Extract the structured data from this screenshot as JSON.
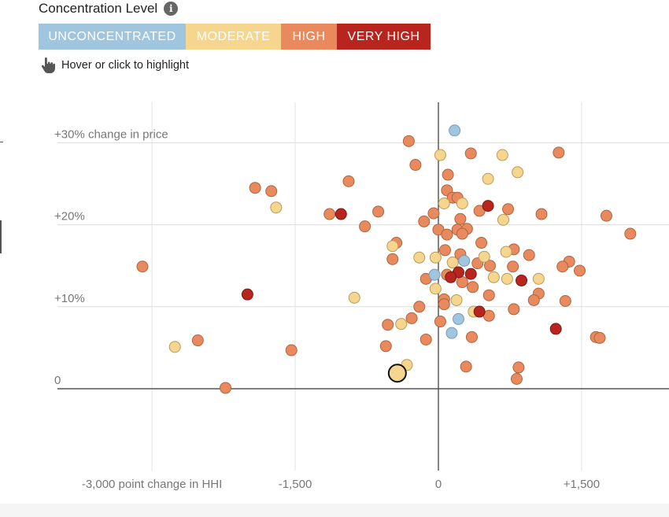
{
  "legend": {
    "title": "Concentration Level",
    "info_icon": "info-icon",
    "items": [
      {
        "label": "UNCONCENTRATED",
        "color": "#9fc5df",
        "text_color": "#ffffff",
        "key": "unconcentrated"
      },
      {
        "label": "MODERATE",
        "color": "#f6d68f",
        "text_color": "#ffffff",
        "key": "moderate"
      },
      {
        "label": "HIGH",
        "color": "#e88a5e",
        "text_color": "#ffffff",
        "key": "high"
      },
      {
        "label": "VERY HIGH",
        "color": "#b8251e",
        "text_color": "#ffffff",
        "key": "very_high"
      }
    ]
  },
  "hint": {
    "text": "Hover or click to highlight",
    "icon": "pointer-hand-icon"
  },
  "chart_data": {
    "type": "scatter",
    "x_tick_labels": [
      {
        "value": -3000,
        "label": "-3,000 point change in HHI"
      },
      {
        "value": -1500,
        "label": "-1,500"
      },
      {
        "value": 0,
        "label": "0"
      },
      {
        "value": 1500,
        "label": "+1,500"
      }
    ],
    "y_tick_labels": [
      {
        "value": 30,
        "label": "+30% change in price"
      },
      {
        "value": 20,
        "label": "+20%"
      },
      {
        "value": 10,
        "label": "+10%"
      },
      {
        "value": 0,
        "label": "0"
      }
    ],
    "xlim": [
      -3150,
      2430
    ],
    "ylim": [
      -10,
      35
    ],
    "grid": true,
    "categories": [
      "unconcentrated",
      "moderate",
      "high",
      "very_high"
    ],
    "points": [
      {
        "x": 170,
        "y": 31.5,
        "c": "unconcentrated"
      },
      {
        "x": 210,
        "y": 8.5,
        "c": "unconcentrated"
      },
      {
        "x": 140,
        "y": 6.8,
        "c": "unconcentrated"
      },
      {
        "x": -40,
        "y": 13.9,
        "c": "unconcentrated"
      },
      {
        "x": 270,
        "y": 15.6,
        "c": "unconcentrated"
      },
      {
        "x": 20,
        "y": 28.5,
        "c": "moderate"
      },
      {
        "x": 670,
        "y": 28.5,
        "c": "moderate"
      },
      {
        "x": 830,
        "y": 26.4,
        "c": "moderate"
      },
      {
        "x": 520,
        "y": 25.6,
        "c": "moderate"
      },
      {
        "x": 250,
        "y": 22.6,
        "c": "moderate"
      },
      {
        "x": 60,
        "y": 22.6,
        "c": "moderate"
      },
      {
        "x": 680,
        "y": 20.6,
        "c": "moderate"
      },
      {
        "x": -1700,
        "y": 22.1,
        "c": "moderate"
      },
      {
        "x": -480,
        "y": 17.4,
        "c": "moderate"
      },
      {
        "x": -200,
        "y": 16.0,
        "c": "moderate"
      },
      {
        "x": -30,
        "y": 16.0,
        "c": "moderate"
      },
      {
        "x": 150,
        "y": 15.4,
        "c": "moderate"
      },
      {
        "x": 480,
        "y": 16.1,
        "c": "moderate"
      },
      {
        "x": 710,
        "y": 16.7,
        "c": "moderate"
      },
      {
        "x": 580,
        "y": 13.6,
        "c": "moderate"
      },
      {
        "x": 720,
        "y": 13.4,
        "c": "moderate"
      },
      {
        "x": 1050,
        "y": 13.4,
        "c": "moderate"
      },
      {
        "x": -30,
        "y": 12.2,
        "c": "moderate"
      },
      {
        "x": 190,
        "y": 10.8,
        "c": "moderate"
      },
      {
        "x": 370,
        "y": 9.4,
        "c": "moderate"
      },
      {
        "x": -880,
        "y": 11.1,
        "c": "moderate"
      },
      {
        "x": -390,
        "y": 7.9,
        "c": "moderate"
      },
      {
        "x": -330,
        "y": 2.9,
        "c": "moderate"
      },
      {
        "x": -2760,
        "y": 5.1,
        "c": "moderate"
      },
      {
        "x": -430,
        "y": 1.9,
        "c": "moderate",
        "highlight": true
      },
      {
        "x": -310,
        "y": 30.2,
        "c": "high"
      },
      {
        "x": -240,
        "y": 27.3,
        "c": "high"
      },
      {
        "x": 340,
        "y": 28.7,
        "c": "high"
      },
      {
        "x": 1260,
        "y": 28.8,
        "c": "high"
      },
      {
        "x": 100,
        "y": 26.1,
        "c": "high"
      },
      {
        "x": -940,
        "y": 25.3,
        "c": "high"
      },
      {
        "x": -1920,
        "y": 24.5,
        "c": "high"
      },
      {
        "x": -1750,
        "y": 24.1,
        "c": "high"
      },
      {
        "x": 90,
        "y": 24.2,
        "c": "high"
      },
      {
        "x": 150,
        "y": 23.3,
        "c": "high"
      },
      {
        "x": 200,
        "y": 23.3,
        "c": "high"
      },
      {
        "x": -1140,
        "y": 21.3,
        "c": "high"
      },
      {
        "x": -630,
        "y": 21.6,
        "c": "high"
      },
      {
        "x": -50,
        "y": 21.4,
        "c": "high"
      },
      {
        "x": 430,
        "y": 21.7,
        "c": "high"
      },
      {
        "x": 730,
        "y": 21.9,
        "c": "high"
      },
      {
        "x": 1080,
        "y": 21.3,
        "c": "high"
      },
      {
        "x": 1760,
        "y": 21.1,
        "c": "high"
      },
      {
        "x": 230,
        "y": 20.7,
        "c": "high"
      },
      {
        "x": -770,
        "y": 19.8,
        "c": "high"
      },
      {
        "x": -150,
        "y": 20.4,
        "c": "high"
      },
      {
        "x": 0,
        "y": 19.4,
        "c": "high"
      },
      {
        "x": 200,
        "y": 19.4,
        "c": "high"
      },
      {
        "x": 300,
        "y": 19.5,
        "c": "high"
      },
      {
        "x": 90,
        "y": 18.8,
        "c": "high"
      },
      {
        "x": 250,
        "y": 18.9,
        "c": "high"
      },
      {
        "x": 2010,
        "y": 18.9,
        "c": "high"
      },
      {
        "x": 450,
        "y": 17.8,
        "c": "high"
      },
      {
        "x": -440,
        "y": 17.8,
        "c": "high"
      },
      {
        "x": 70,
        "y": 16.9,
        "c": "high"
      },
      {
        "x": 230,
        "y": 16.4,
        "c": "high"
      },
      {
        "x": 790,
        "y": 17.0,
        "c": "high"
      },
      {
        "x": 950,
        "y": 16.3,
        "c": "high"
      },
      {
        "x": -480,
        "y": 15.8,
        "c": "high"
      },
      {
        "x": 410,
        "y": 15.3,
        "c": "high"
      },
      {
        "x": 540,
        "y": 15.0,
        "c": "high"
      },
      {
        "x": 1370,
        "y": 15.5,
        "c": "high"
      },
      {
        "x": 1300,
        "y": 14.9,
        "c": "high"
      },
      {
        "x": 780,
        "y": 14.9,
        "c": "high"
      },
      {
        "x": 1480,
        "y": 14.4,
        "c": "high"
      },
      {
        "x": 90,
        "y": 13.9,
        "c": "high"
      },
      {
        "x": -130,
        "y": 13.4,
        "c": "high"
      },
      {
        "x": 250,
        "y": 13.0,
        "c": "high"
      },
      {
        "x": 360,
        "y": 12.4,
        "c": "high"
      },
      {
        "x": 530,
        "y": 11.4,
        "c": "high"
      },
      {
        "x": 1050,
        "y": 11.6,
        "c": "high"
      },
      {
        "x": 1000,
        "y": 10.8,
        "c": "high"
      },
      {
        "x": 1330,
        "y": 10.7,
        "c": "high"
      },
      {
        "x": 60,
        "y": 10.9,
        "c": "high"
      },
      {
        "x": 60,
        "y": 10.3,
        "c": "high"
      },
      {
        "x": -200,
        "y": 10.0,
        "c": "high"
      },
      {
        "x": 790,
        "y": 9.7,
        "c": "high"
      },
      {
        "x": 530,
        "y": 8.9,
        "c": "high"
      },
      {
        "x": -280,
        "y": 8.6,
        "c": "high"
      },
      {
        "x": 20,
        "y": 8.2,
        "c": "high"
      },
      {
        "x": -530,
        "y": 7.8,
        "c": "high"
      },
      {
        "x": -130,
        "y": 6.0,
        "c": "high"
      },
      {
        "x": 350,
        "y": 6.3,
        "c": "high"
      },
      {
        "x": 1650,
        "y": 6.3,
        "c": "high"
      },
      {
        "x": 1690,
        "y": 6.2,
        "c": "high"
      },
      {
        "x": -2520,
        "y": 5.9,
        "c": "high"
      },
      {
        "x": -1540,
        "y": 4.7,
        "c": "high"
      },
      {
        "x": -550,
        "y": 5.2,
        "c": "high"
      },
      {
        "x": 290,
        "y": 2.7,
        "c": "high"
      },
      {
        "x": 840,
        "y": 2.6,
        "c": "high"
      },
      {
        "x": 820,
        "y": 1.2,
        "c": "high"
      },
      {
        "x": -2230,
        "y": 0.1,
        "c": "high"
      },
      {
        "x": -3100,
        "y": 14.9,
        "c": "high"
      },
      {
        "x": -1020,
        "y": 21.3,
        "c": "very_high"
      },
      {
        "x": 520,
        "y": 22.3,
        "c": "very_high"
      },
      {
        "x": 210,
        "y": 14.2,
        "c": "very_high"
      },
      {
        "x": 130,
        "y": 13.6,
        "c": "very_high"
      },
      {
        "x": 340,
        "y": 14.0,
        "c": "very_high"
      },
      {
        "x": 870,
        "y": 13.2,
        "c": "very_high"
      },
      {
        "x": -2000,
        "y": 11.5,
        "c": "very_high"
      },
      {
        "x": 430,
        "y": 9.4,
        "c": "very_high"
      },
      {
        "x": 1230,
        "y": 7.3,
        "c": "very_high"
      }
    ]
  }
}
